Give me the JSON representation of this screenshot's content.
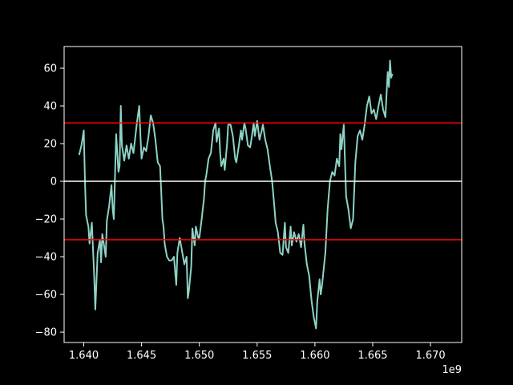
{
  "chart_data": {
    "type": "line",
    "title": "",
    "xlabel": "",
    "ylabel": "",
    "x_offset_label": "1e9",
    "xlim": [
      1.6383,
      1.6727
    ],
    "ylim": [
      -85.5,
      71.5
    ],
    "x_ticks": [
      1.64,
      1.645,
      1.65,
      1.655,
      1.66,
      1.665,
      1.67
    ],
    "x_tick_labels": [
      "1.640",
      "1.645",
      "1.650",
      "1.655",
      "1.660",
      "1.665",
      "1.670"
    ],
    "y_ticks": [
      60,
      40,
      20,
      0,
      -20,
      -40,
      -60,
      -80
    ],
    "y_tick_labels": [
      "60",
      "40",
      "20",
      "0",
      "−20",
      "−40",
      "−60",
      "−80"
    ],
    "grid": false,
    "background": "#000000",
    "series": [
      {
        "color": "#8dd3c7",
        "points": [
          [
            1.6396,
            14
          ],
          [
            1.6398,
            19
          ],
          [
            1.64,
            27
          ],
          [
            1.6401,
            0
          ],
          [
            1.6402,
            -18
          ],
          [
            1.6404,
            -24
          ],
          [
            1.6405,
            -33
          ],
          [
            1.6407,
            -22
          ],
          [
            1.6409,
            -50
          ],
          [
            1.641,
            -68
          ],
          [
            1.6412,
            -38
          ],
          [
            1.6414,
            -31
          ],
          [
            1.6415,
            -43
          ],
          [
            1.6416,
            -28
          ],
          [
            1.6418,
            -36
          ],
          [
            1.6419,
            -40
          ],
          [
            1.642,
            -21
          ],
          [
            1.6422,
            -13
          ],
          [
            1.6424,
            -2
          ],
          [
            1.6425,
            -15
          ],
          [
            1.6426,
            -20
          ],
          [
            1.6428,
            25
          ],
          [
            1.643,
            5
          ],
          [
            1.6431,
            8
          ],
          [
            1.6432,
            40
          ],
          [
            1.6433,
            19
          ],
          [
            1.6435,
            11
          ],
          [
            1.6437,
            19
          ],
          [
            1.6439,
            12
          ],
          [
            1.6441,
            20
          ],
          [
            1.6443,
            15
          ],
          [
            1.6446,
            31
          ],
          [
            1.6448,
            40
          ],
          [
            1.6449,
            24
          ],
          [
            1.645,
            12
          ],
          [
            1.6452,
            18
          ],
          [
            1.6454,
            16
          ],
          [
            1.6456,
            24
          ],
          [
            1.6458,
            35
          ],
          [
            1.646,
            31
          ],
          [
            1.6462,
            22
          ],
          [
            1.6464,
            10
          ],
          [
            1.6466,
            8
          ],
          [
            1.6467,
            -5
          ],
          [
            1.6468,
            -20
          ],
          [
            1.6469,
            -24
          ],
          [
            1.647,
            -33
          ],
          [
            1.6472,
            -40
          ],
          [
            1.6474,
            -42
          ],
          [
            1.6476,
            -42
          ],
          [
            1.6478,
            -40
          ],
          [
            1.648,
            -55
          ],
          [
            1.6481,
            -38
          ],
          [
            1.6483,
            -30
          ],
          [
            1.6485,
            -37
          ],
          [
            1.6487,
            -44
          ],
          [
            1.6489,
            -40
          ],
          [
            1.649,
            -62
          ],
          [
            1.6491,
            -58
          ],
          [
            1.6493,
            -45
          ],
          [
            1.6494,
            -25
          ],
          [
            1.6496,
            -34
          ],
          [
            1.6497,
            -24
          ],
          [
            1.6499,
            -30
          ],
          [
            1.65,
            -30
          ],
          [
            1.6502,
            -20
          ],
          [
            1.6504,
            -9
          ],
          [
            1.6505,
            0
          ],
          [
            1.6506,
            3
          ],
          [
            1.6508,
            12
          ],
          [
            1.651,
            15
          ],
          [
            1.6512,
            27
          ],
          [
            1.6514,
            31
          ],
          [
            1.6515,
            21
          ],
          [
            1.6517,
            28
          ],
          [
            1.6518,
            15
          ],
          [
            1.6519,
            8
          ],
          [
            1.6521,
            12
          ],
          [
            1.6522,
            6
          ],
          [
            1.6524,
            20
          ],
          [
            1.6525,
            30
          ],
          [
            1.6527,
            30
          ],
          [
            1.6529,
            24
          ],
          [
            1.6531,
            12
          ],
          [
            1.6532,
            10
          ],
          [
            1.6534,
            18
          ],
          [
            1.6536,
            27
          ],
          [
            1.6537,
            22
          ],
          [
            1.6539,
            31
          ],
          [
            1.654,
            28
          ],
          [
            1.6542,
            19
          ],
          [
            1.6544,
            18
          ],
          [
            1.6545,
            22
          ],
          [
            1.6547,
            31
          ],
          [
            1.6548,
            24
          ],
          [
            1.655,
            32
          ],
          [
            1.6552,
            22
          ],
          [
            1.6554,
            27
          ],
          [
            1.6555,
            30
          ],
          [
            1.6557,
            22
          ],
          [
            1.6559,
            17
          ],
          [
            1.6561,
            8
          ],
          [
            1.6563,
            0
          ],
          [
            1.6565,
            -14
          ],
          [
            1.6566,
            -22
          ],
          [
            1.6568,
            -27
          ],
          [
            1.657,
            -38
          ],
          [
            1.6572,
            -39
          ],
          [
            1.6574,
            -22
          ],
          [
            1.6575,
            -35
          ],
          [
            1.6577,
            -38
          ],
          [
            1.6579,
            -24
          ],
          [
            1.658,
            -34
          ],
          [
            1.6582,
            -27
          ],
          [
            1.6584,
            -32
          ],
          [
            1.6586,
            -28
          ],
          [
            1.6588,
            -35
          ],
          [
            1.659,
            -23
          ],
          [
            1.6591,
            -33
          ],
          [
            1.6593,
            -44
          ],
          [
            1.6595,
            -50
          ],
          [
            1.6597,
            -63
          ],
          [
            1.6599,
            -72
          ],
          [
            1.6601,
            -78
          ],
          [
            1.6602,
            -64
          ],
          [
            1.6604,
            -52
          ],
          [
            1.6605,
            -60
          ],
          [
            1.6606,
            -56
          ],
          [
            1.6607,
            -50
          ],
          [
            1.6609,
            -38
          ],
          [
            1.6611,
            -15
          ],
          [
            1.6613,
            0
          ],
          [
            1.6615,
            5
          ],
          [
            1.6617,
            3
          ],
          [
            1.6619,
            12
          ],
          [
            1.6621,
            8
          ],
          [
            1.6622,
            25
          ],
          [
            1.6623,
            17
          ],
          [
            1.6625,
            30
          ],
          [
            1.6627,
            -8
          ],
          [
            1.6629,
            -15
          ],
          [
            1.6631,
            -25
          ],
          [
            1.6633,
            -20
          ],
          [
            1.6635,
            10
          ],
          [
            1.6637,
            24
          ],
          [
            1.6639,
            27
          ],
          [
            1.6641,
            22
          ],
          [
            1.6643,
            30
          ],
          [
            1.6645,
            40
          ],
          [
            1.6647,
            45
          ],
          [
            1.6649,
            36
          ],
          [
            1.6651,
            38
          ],
          [
            1.6653,
            33
          ],
          [
            1.6655,
            40
          ],
          [
            1.6657,
            46
          ],
          [
            1.6659,
            38
          ],
          [
            1.6661,
            34
          ],
          [
            1.6663,
            58
          ],
          [
            1.6664,
            50
          ],
          [
            1.6665,
            64
          ],
          [
            1.6666,
            55
          ],
          [
            1.6667,
            57
          ]
        ]
      }
    ],
    "horizontal_lines": [
      {
        "y": 31,
        "color": "#ff0000"
      },
      {
        "y": 0,
        "color": "#ffffff"
      },
      {
        "y": -31,
        "color": "#ff0000"
      }
    ]
  }
}
